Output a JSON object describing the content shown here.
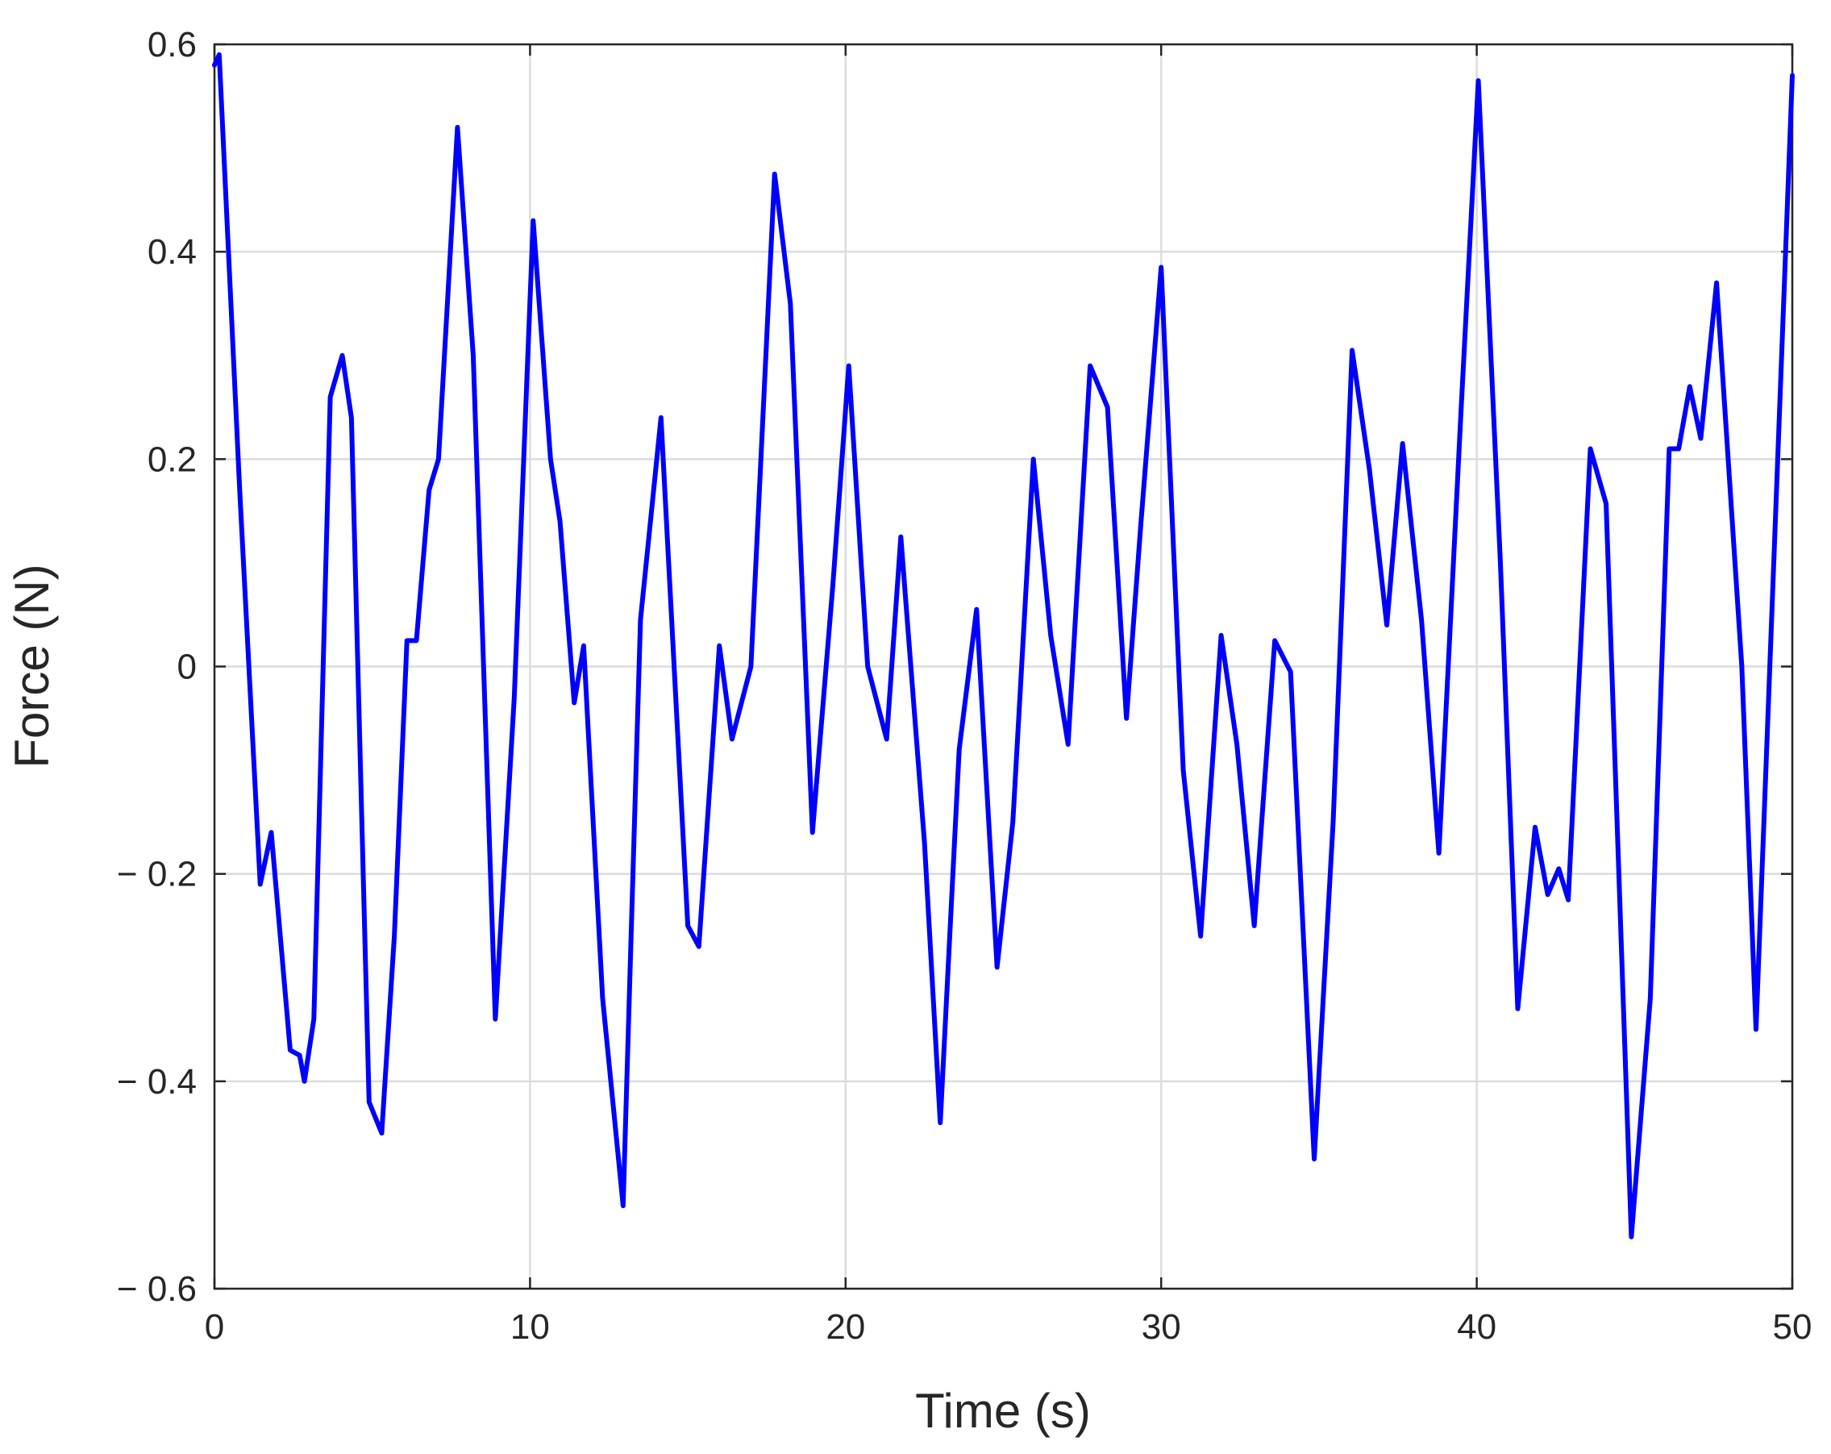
{
  "chart_data": {
    "type": "line",
    "x_label": "Time (s)",
    "y_label": "Force (N)",
    "xlim": [
      0,
      50
    ],
    "ylim": [
      -0.6,
      0.6
    ],
    "xticks": [
      0,
      10,
      20,
      30,
      40,
      50
    ],
    "yticks": [
      {
        "value": -0.6,
        "label": "− 0.6"
      },
      {
        "value": -0.4,
        "label": "− 0.4"
      },
      {
        "value": -0.2,
        "label": "− 0.2"
      },
      0,
      0.2,
      0.4,
      0.6
    ],
    "grid": true,
    "x": [
      0,
      0.15,
      0.8,
      1.45,
      1.8,
      2.4,
      2.7,
      2.85,
      3.15,
      3.67,
      4.05,
      4.34,
      4.9,
      5.3,
      5.7,
      6.1,
      6.4,
      6.8,
      7.1,
      7.7,
      8.2,
      8.9,
      9.5,
      10.1,
      10.65,
      10.95,
      11.4,
      11.7,
      12.3,
      12.95,
      13.5,
      14.15,
      15.0,
      15.35,
      16.0,
      16.4,
      17.0,
      17.75,
      18.25,
      18.95,
      19.6,
      20.1,
      20.7,
      21.3,
      21.75,
      22.5,
      23.0,
      23.6,
      24.15,
      24.8,
      25.3,
      25.95,
      26.5,
      27.05,
      27.75,
      28.3,
      28.9,
      29.35,
      30.0,
      30.7,
      31.25,
      31.9,
      32.4,
      32.95,
      33.6,
      34.1,
      34.85,
      35.45,
      36.05,
      36.6,
      37.15,
      37.65,
      38.25,
      38.8,
      39.5,
      40.05,
      40.75,
      41.3,
      41.85,
      42.25,
      42.6,
      42.9,
      43.6,
      44.1,
      44.9,
      45.5,
      46.1,
      46.4,
      46.75,
      47.1,
      47.6,
      48.4,
      48.85,
      50
    ],
    "series": [
      {
        "color": "#0000ff",
        "values": [
          0.58,
          0.59,
          0.17,
          -0.21,
          -0.16,
          -0.37,
          -0.375,
          -0.4,
          -0.34,
          0.26,
          0.3,
          0.24,
          -0.42,
          -0.45,
          -0.26,
          0.025,
          0.025,
          0.17,
          0.2,
          0.52,
          0.3,
          -0.34,
          -0.03,
          0.43,
          0.2,
          0.14,
          -0.035,
          0.02,
          -0.32,
          -0.52,
          0.045,
          0.24,
          -0.25,
          -0.27,
          0.02,
          -0.07,
          0.0,
          0.475,
          0.35,
          -0.16,
          0.08,
          0.29,
          0.0,
          -0.07,
          0.125,
          -0.17,
          -0.44,
          -0.08,
          0.055,
          -0.29,
          -0.15,
          0.2,
          0.03,
          -0.075,
          0.29,
          0.25,
          -0.05,
          0.135,
          0.385,
          -0.1,
          -0.26,
          0.03,
          -0.075,
          -0.25,
          0.025,
          -0.005,
          -0.475,
          -0.15,
          0.305,
          0.19,
          0.04,
          0.215,
          0.045,
          -0.18,
          0.245,
          0.565,
          0.1,
          -0.33,
          -0.155,
          -0.22,
          -0.195,
          -0.225,
          0.21,
          0.157,
          -0.55,
          -0.32,
          0.21,
          0.21,
          0.27,
          0.22,
          0.37,
          0.0,
          -0.35,
          0.57
        ]
      }
    ]
  }
}
